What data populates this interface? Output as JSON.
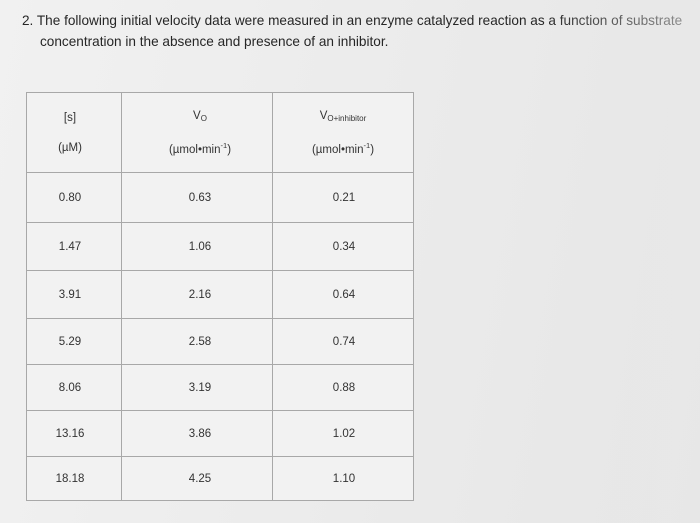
{
  "question": {
    "number": "2.",
    "line1": "The following initial velocity data were measured in an enzyme catalyzed reaction as a function of substrate",
    "line2": "concentration in the absence and presence of an inhibitor."
  },
  "table": {
    "headers": [
      {
        "main": "[s]",
        "main_sub": "",
        "unit": "(µM)",
        "unit_sup": ""
      },
      {
        "main": "V",
        "main_sub": "O",
        "unit": "(µmol•min",
        "unit_sup": "-1",
        "unit_end": ")"
      },
      {
        "main": "V",
        "main_sub": "O+inhibitor",
        "unit": "(µmol•min",
        "unit_sup": "-1",
        "unit_end": ")"
      }
    ],
    "rows": [
      [
        "0.80",
        "0.63",
        "0.21"
      ],
      [
        "1.47",
        "1.06",
        "0.34"
      ],
      [
        "3.91",
        "2.16",
        "0.64"
      ],
      [
        "5.29",
        "2.58",
        "0.74"
      ],
      [
        "8.06",
        "3.19",
        "0.88"
      ],
      [
        "13.16",
        "3.86",
        "1.02"
      ],
      [
        "18.18",
        "4.25",
        "1.10"
      ]
    ]
  }
}
